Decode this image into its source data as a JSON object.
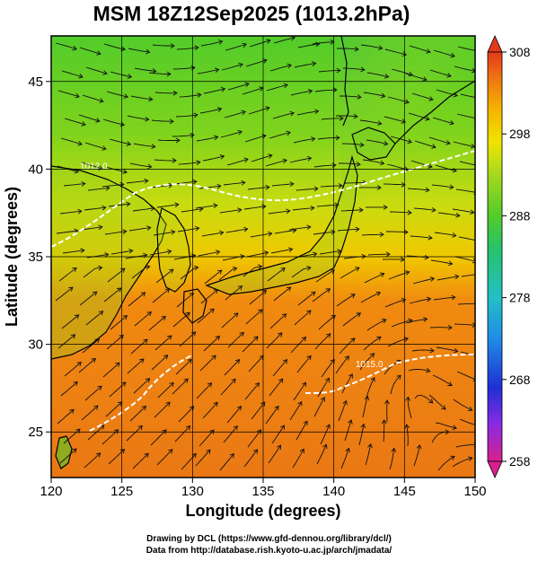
{
  "title": "MSM 18Z12Sep2025 (1013.2hPa)",
  "map": {
    "xlabel": "Longitude (degrees)",
    "ylabel": "Latitude  (degrees)",
    "x_ticks": [
      120,
      125,
      130,
      135,
      140,
      145,
      150
    ],
    "y_ticks": [
      25,
      30,
      35,
      40,
      45
    ],
    "x_range": [
      120,
      150
    ],
    "y_range": [
      22.4,
      47.6
    ],
    "contours": [
      {
        "label": "1012.0",
        "lon": 122.8,
        "lat": 40.0
      },
      {
        "label": "1015.0",
        "lon": 142.3,
        "lat": 28.7
      }
    ]
  },
  "colorbar": {
    "ticks": [
      308,
      298,
      288,
      278,
      268,
      258
    ],
    "range": [
      258,
      308
    ],
    "colors": [
      "#d8208c",
      "#8a2be2",
      "#1f2fd6",
      "#1f8ce6",
      "#22c0c6",
      "#26c26b",
      "#52cc2a",
      "#a6d81e",
      "#f0e400",
      "#f5b300",
      "#ef7a10",
      "#e33a1b"
    ]
  },
  "credits": {
    "line1": "Drawing by DCL (https://www.gfd-dennou.org/library/dcl/)",
    "line2": "Data from http://database.rish.kyoto-u.ac.jp/arch/jmadata/"
  }
}
